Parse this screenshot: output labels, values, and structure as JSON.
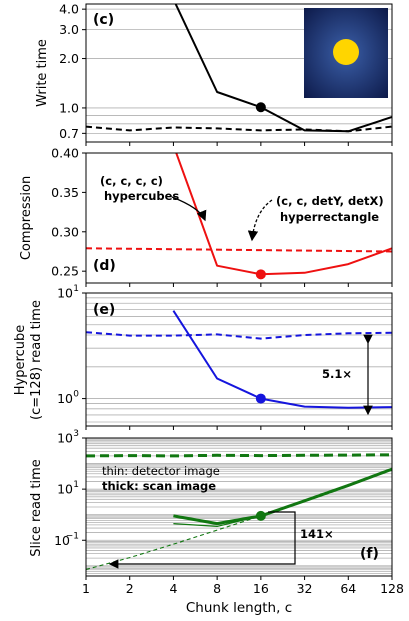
{
  "chart_data": {
    "type": "line",
    "xlabel": "Chunk length, c",
    "x": [
      1,
      2,
      4,
      8,
      16,
      32,
      64,
      128
    ],
    "x_ticks": [
      "1",
      "2",
      "4",
      "8",
      "16",
      "32",
      "64",
      "128"
    ],
    "x_scale": "log2",
    "panels": [
      {
        "id": "c",
        "letter": "(c)",
        "ylabel": "Write time",
        "yscale": "log",
        "ylim": [
          0.62,
          4.3
        ],
        "yticks": [
          {
            "value": 0.7,
            "label": "0.7"
          },
          {
            "value": 1.0,
            "label": "1.0"
          },
          {
            "value": 2.0,
            "label": "2.0"
          },
          {
            "value": 3.0,
            "label": "3.0"
          },
          {
            "value": 4.0,
            "label": "4.0"
          }
        ],
        "series": [
          {
            "style": "solid",
            "color": "#000000",
            "x": [
              4,
              8,
              16,
              32,
              64,
              128
            ],
            "y": [
              4.6,
              1.25,
              1.01,
              0.73,
              0.72,
              0.88
            ]
          },
          {
            "style": "dashed",
            "color": "#000000",
            "x": [
              1,
              2,
              4,
              8,
              16,
              32,
              64,
              128
            ],
            "y": [
              0.77,
              0.73,
              0.76,
              0.75,
              0.73,
              0.74,
              0.72,
              0.77
            ]
          }
        ],
        "highlight": {
          "x": 16,
          "y": 1.01,
          "color": "#000000"
        }
      },
      {
        "id": "d",
        "letter": "(d)",
        "ylabel": "Compression",
        "yscale": "linear",
        "ylim": [
          0.235,
          0.4
        ],
        "yticks": [
          {
            "value": 0.25,
            "label": "0.25"
          },
          {
            "value": 0.3,
            "label": "0.30"
          },
          {
            "value": 0.35,
            "label": "0.35"
          },
          {
            "value": 0.4,
            "label": "0.40"
          }
        ],
        "series": [
          {
            "style": "solid",
            "color": "#ee1111",
            "x": [
              4,
              8,
              16,
              32,
              64,
              128
            ],
            "y": [
              0.41,
              0.257,
              0.246,
              0.248,
              0.259,
              0.279
            ]
          },
          {
            "style": "dashed",
            "color": "#ee1111",
            "x": [
              1,
              128
            ],
            "y": [
              0.279,
              0.275
            ]
          }
        ],
        "highlight": {
          "x": 16,
          "y": 0.246,
          "color": "#ee1111"
        },
        "annotations": [
          {
            "lines": [
              "(c, c, c, c)",
              "hypercubes"
            ]
          },
          {
            "lines": [
              "(c, c, detY, detX)",
              "hyperrectangle"
            ]
          }
        ]
      },
      {
        "id": "e",
        "letter": "(e)",
        "ylabel": [
          "Hypercube",
          "(c=128) read time"
        ],
        "yscale": "log",
        "ylim": [
          0.55,
          10
        ],
        "yticks": [
          {
            "value": 1,
            "label": "10",
            "exp": "0"
          },
          {
            "value": 10,
            "label": "10",
            "exp": "1"
          }
        ],
        "series": [
          {
            "style": "solid",
            "color": "#1515dd",
            "x": [
              4,
              8,
              16,
              32,
              64,
              128
            ],
            "y": [
              6.8,
              1.55,
              1.0,
              0.84,
              0.82,
              0.83
            ]
          },
          {
            "style": "dashed",
            "color": "#1515dd",
            "x": [
              1,
              2,
              4,
              8,
              16,
              32,
              64,
              128
            ],
            "y": [
              4.25,
              3.95,
              3.95,
              4.05,
              3.7,
              4.0,
              4.15,
              4.2
            ]
          }
        ],
        "highlight": {
          "x": 16,
          "y": 1.0,
          "color": "#1515dd"
        },
        "annotations": [
          {
            "text": "5.1×"
          }
        ]
      },
      {
        "id": "f",
        "letter": "(f)",
        "ylabel": "Slice read time",
        "yscale": "log",
        "ylim": [
          0.004,
          1000
        ],
        "yticks": [
          {
            "value": 0.1,
            "label": "10",
            "exp": "−1"
          },
          {
            "value": 10,
            "label": "10",
            "exp": "1"
          },
          {
            "value": 1000,
            "label": "10",
            "exp": "3"
          }
        ],
        "series": [
          {
            "style": "thick-dashed",
            "color": "#117711",
            "x": [
              1,
              2,
              4,
              8,
              16,
              32,
              64,
              128
            ],
            "y": [
              200,
              205,
              200,
              210,
              205,
              210,
              215,
              220
            ]
          },
          {
            "style": "thin-dashed",
            "color": "#117711",
            "x": [
              1,
              2,
              4,
              8,
              16,
              32,
              64,
              128
            ],
            "y": [
              0.0072,
              0.021,
              0.07,
              0.25,
              0.9,
              3.5,
              15,
              60
            ]
          },
          {
            "style": "thick-solid",
            "color": "#117711",
            "x": [
              4,
              8,
              16,
              32,
              64,
              128
            ],
            "y": [
              0.9,
              0.45,
              0.9,
              3.5,
              14,
              60
            ]
          },
          {
            "style": "thin-solid",
            "color": "#117711",
            "x": [
              4,
              8,
              16
            ],
            "y": [
              0.45,
              0.35,
              0.9
            ]
          }
        ],
        "highlight": {
          "x": 16,
          "y": 0.9,
          "color": "#117711"
        },
        "legend": [
          "thin: detector image",
          "thick: scan image"
        ],
        "annotations": [
          {
            "text": "141×"
          }
        ]
      }
    ]
  }
}
